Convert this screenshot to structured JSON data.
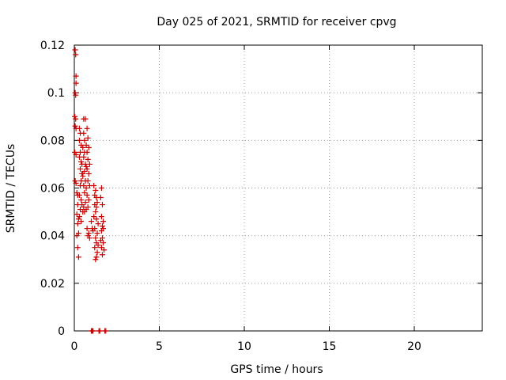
{
  "chart_data": {
    "type": "scatter",
    "title": "Day 025 of 2021, SRMTID for receiver cpvg",
    "xlabel": "GPS time / hours",
    "ylabel": "SRMTID / TECUs",
    "xlim": [
      0,
      24
    ],
    "ylim": [
      0,
      0.12
    ],
    "xticks": [
      0,
      5,
      10,
      15,
      20
    ],
    "xtick_labels": [
      "0",
      "5",
      "10",
      "15",
      "20"
    ],
    "yticks": [
      0,
      0.02,
      0.04,
      0.06,
      0.08,
      0.1,
      0.12
    ],
    "ytick_labels": [
      "0",
      "0.02",
      "0.04",
      "0.06",
      "0.08",
      "0.1",
      "0.12"
    ],
    "grid": true,
    "marker": "+",
    "color": "#cc0000",
    "series": [
      {
        "name": "SRMTID",
        "points": [
          [
            0.05,
            0.118
          ],
          [
            0.08,
            0.116
          ],
          [
            0.1,
            0.107
          ],
          [
            0.1,
            0.104
          ],
          [
            0.05,
            0.1
          ],
          [
            0.08,
            0.099
          ],
          [
            0.03,
            0.09
          ],
          [
            0.08,
            0.089
          ],
          [
            0.05,
            0.086
          ],
          [
            0.1,
            0.085
          ],
          [
            0.03,
            0.075
          ],
          [
            0.1,
            0.074
          ],
          [
            0.05,
            0.063
          ],
          [
            0.1,
            0.062
          ],
          [
            0.15,
            0.058
          ],
          [
            0.2,
            0.057
          ],
          [
            0.2,
            0.053
          ],
          [
            0.15,
            0.049
          ],
          [
            0.25,
            0.047
          ],
          [
            0.2,
            0.045
          ],
          [
            0.15,
            0.04
          ],
          [
            0.25,
            0.041
          ],
          [
            0.2,
            0.035
          ],
          [
            0.25,
            0.031
          ],
          [
            0.3,
            0.085
          ],
          [
            0.35,
            0.083
          ],
          [
            0.3,
            0.08
          ],
          [
            0.4,
            0.078
          ],
          [
            0.35,
            0.075
          ],
          [
            0.3,
            0.073
          ],
          [
            0.4,
            0.071
          ],
          [
            0.45,
            0.07
          ],
          [
            0.35,
            0.068
          ],
          [
            0.45,
            0.066
          ],
          [
            0.5,
            0.065
          ],
          [
            0.4,
            0.063
          ],
          [
            0.35,
            0.061
          ],
          [
            0.3,
            0.057
          ],
          [
            0.4,
            0.055
          ],
          [
            0.45,
            0.053
          ],
          [
            0.35,
            0.051
          ],
          [
            0.3,
            0.048
          ],
          [
            0.4,
            0.046
          ],
          [
            0.5,
            0.05
          ],
          [
            0.55,
            0.089
          ],
          [
            0.65,
            0.089
          ],
          [
            0.55,
            0.083
          ],
          [
            0.6,
            0.08
          ],
          [
            0.7,
            0.078
          ],
          [
            0.5,
            0.077
          ],
          [
            0.6,
            0.075
          ],
          [
            0.55,
            0.073
          ],
          [
            0.65,
            0.07
          ],
          [
            0.7,
            0.069
          ],
          [
            0.6,
            0.067
          ],
          [
            0.5,
            0.066
          ],
          [
            0.65,
            0.063
          ],
          [
            0.55,
            0.061
          ],
          [
            0.7,
            0.06
          ],
          [
            0.6,
            0.058
          ],
          [
            0.65,
            0.054
          ],
          [
            0.55,
            0.052
          ],
          [
            0.7,
            0.051
          ],
          [
            0.6,
            0.05
          ],
          [
            0.75,
            0.085
          ],
          [
            0.8,
            0.081
          ],
          [
            0.85,
            0.077
          ],
          [
            0.75,
            0.075
          ],
          [
            0.8,
            0.072
          ],
          [
            0.9,
            0.07
          ],
          [
            0.75,
            0.068
          ],
          [
            0.85,
            0.066
          ],
          [
            0.8,
            0.063
          ],
          [
            0.9,
            0.061
          ],
          [
            0.75,
            0.057
          ],
          [
            0.85,
            0.055
          ],
          [
            0.8,
            0.052
          ],
          [
            0.75,
            0.043
          ],
          [
            0.85,
            0.041
          ],
          [
            0.8,
            0.04
          ],
          [
            0.9,
            0.039
          ],
          [
            1.0,
            0.046
          ],
          [
            1.05,
            0.043
          ],
          [
            1.1,
            0.042
          ],
          [
            1.15,
            0.061
          ],
          [
            1.25,
            0.059
          ],
          [
            1.2,
            0.057
          ],
          [
            1.3,
            0.056
          ],
          [
            1.35,
            0.054
          ],
          [
            1.2,
            0.053
          ],
          [
            1.3,
            0.052
          ],
          [
            1.25,
            0.05
          ],
          [
            1.15,
            0.048
          ],
          [
            1.3,
            0.047
          ],
          [
            1.4,
            0.045
          ],
          [
            1.2,
            0.043
          ],
          [
            1.35,
            0.041
          ],
          [
            1.25,
            0.039
          ],
          [
            1.3,
            0.037
          ],
          [
            1.4,
            0.036
          ],
          [
            1.2,
            0.035
          ],
          [
            1.35,
            0.033
          ],
          [
            1.3,
            0.031
          ],
          [
            1.25,
            0.03
          ],
          [
            1.6,
            0.06
          ],
          [
            1.55,
            0.056
          ],
          [
            1.65,
            0.053
          ],
          [
            1.6,
            0.048
          ],
          [
            1.7,
            0.046
          ],
          [
            1.65,
            0.044
          ],
          [
            1.7,
            0.043
          ],
          [
            1.6,
            0.042
          ],
          [
            1.65,
            0.039
          ],
          [
            1.55,
            0.038
          ],
          [
            1.7,
            0.037
          ],
          [
            1.6,
            0.035
          ],
          [
            1.75,
            0.034
          ],
          [
            1.65,
            0.032
          ],
          [
            1.0,
            0.0
          ],
          [
            1.05,
            0.0
          ],
          [
            1.1,
            0.0
          ],
          [
            1.45,
            0.0
          ],
          [
            1.5,
            0.0
          ],
          [
            1.8,
            0.0
          ],
          [
            1.85,
            0.0
          ]
        ]
      }
    ]
  }
}
